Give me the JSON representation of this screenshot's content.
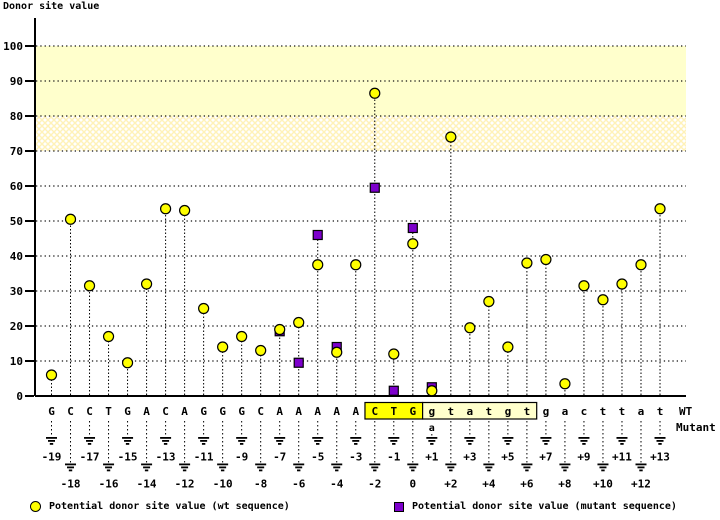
{
  "title": "Donor site value",
  "colors": {
    "wt_marker": "#FFFF00",
    "mutant_marker": "#7D00CC",
    "band_solid": "#FFFFCC",
    "hatch_line": "#FFF2B8",
    "box_donor": "#FFFF00",
    "box_intron": "#FFFFCC",
    "mutant_text": "#0000DD",
    "axis": "#000000"
  },
  "legend": {
    "wt_label": "Potential donor site value (wt sequence)",
    "mutant_label": "Potential donor site value (mutant sequence)"
  },
  "right_labels": {
    "wt": "WT",
    "mutant": "Mutant"
  },
  "chart_data": {
    "type": "scatter",
    "title": "Donor site value",
    "ylabel": "Donor site value",
    "ylim": [
      0,
      110
    ],
    "yticks": [
      0,
      10,
      20,
      30,
      40,
      50,
      60,
      70,
      80,
      90,
      100
    ],
    "grid": "dotted-horizontal",
    "legend_position": "bottom",
    "bands": [
      {
        "from": 80,
        "to": 100,
        "style": "solid"
      },
      {
        "from": 70,
        "to": 80,
        "style": "crosshatch"
      }
    ],
    "positions": [
      "-19",
      "-18",
      "-17",
      "-16",
      "-15",
      "-14",
      "-13",
      "-12",
      "-11",
      "-10",
      "-9",
      "-8",
      "-7",
      "-6",
      "-5",
      "-4",
      "-3",
      "-2",
      "-1",
      "0",
      "+1",
      "+2",
      "+3",
      "+4",
      "+5",
      "+6",
      "+7",
      "+8",
      "+9",
      "+10",
      "+11",
      "+12",
      "+13"
    ],
    "sequence": [
      "G",
      "C",
      "C",
      "T",
      "G",
      "A",
      "C",
      "A",
      "G",
      "G",
      "G",
      "C",
      "A",
      "A",
      "A",
      "A",
      "A",
      "C",
      "T",
      "G",
      "g",
      "t",
      "a",
      "t",
      "g",
      "t",
      "g",
      "a",
      "c",
      "t",
      "t",
      "a",
      "t"
    ],
    "highlight_box": {
      "from": "-2",
      "to": "+6",
      "divider_after": "0",
      "exon_part": "CTG",
      "intron_part": "gtatgt"
    },
    "mutation": {
      "position": "+1",
      "wt_base": "g",
      "mutant_base": "a"
    },
    "series": [
      {
        "name": "Potential donor site value (wt sequence)",
        "marker": "circle",
        "values": [
          6,
          50.5,
          31.5,
          17,
          9.5,
          32,
          53.5,
          53,
          25,
          14,
          17,
          13,
          19,
          21,
          37.5,
          12.5,
          37.5,
          86.5,
          12,
          43.5,
          1.5,
          74,
          19.5,
          27,
          14,
          38,
          39,
          3.5,
          31.5,
          27.5,
          32,
          37.5,
          53.5
        ]
      },
      {
        "name": "Potential donor site value (mutant sequence)",
        "marker": "square",
        "points": [
          {
            "position": "-7",
            "value": 18.5
          },
          {
            "position": "-6",
            "value": 9.5
          },
          {
            "position": "-5",
            "value": 46
          },
          {
            "position": "-4",
            "value": 14
          },
          {
            "position": "-2",
            "value": 59.5
          },
          {
            "position": "-1",
            "value": 1.5
          },
          {
            "position": "0",
            "value": 48
          },
          {
            "position": "+1",
            "value": 2.5
          }
        ]
      }
    ]
  }
}
